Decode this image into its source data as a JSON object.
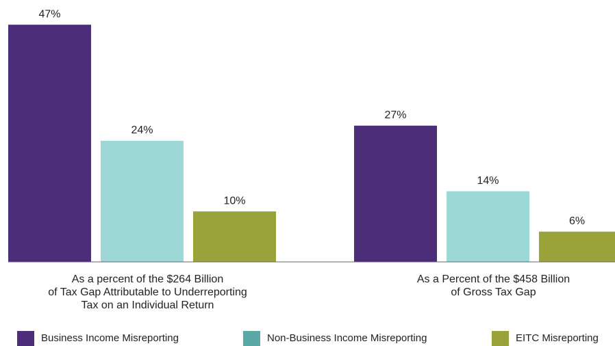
{
  "chart_data": {
    "type": "bar",
    "categories": [
      [
        "As a percent of the $264 Billion",
        "of Tax Gap Attributable to Underreporting",
        "Tax on an Individual Return"
      ],
      [
        "As a Percent of the $458 Billion",
        "of Gross Tax Gap"
      ]
    ],
    "series": [
      {
        "name": "Business Income Misreporting",
        "color": "#4b2d7a",
        "legend_color": "#4b2d7a",
        "values": [
          47,
          27
        ],
        "value_labels": [
          "47%",
          "27%"
        ]
      },
      {
        "name": "Non-Business Income Misreporting",
        "color": "#9dd8d6",
        "legend_color": "#5aa9a6",
        "values": [
          24,
          14
        ],
        "value_labels": [
          "24%",
          "14%"
        ]
      },
      {
        "name": "EITC Misreporting",
        "color": "#9aa23a",
        "legend_color": "#9aa23a",
        "values": [
          10,
          6
        ],
        "value_labels": [
          "10%",
          "6%"
        ]
      }
    ],
    "ylim": [
      0,
      50
    ],
    "legend": "bottom"
  }
}
